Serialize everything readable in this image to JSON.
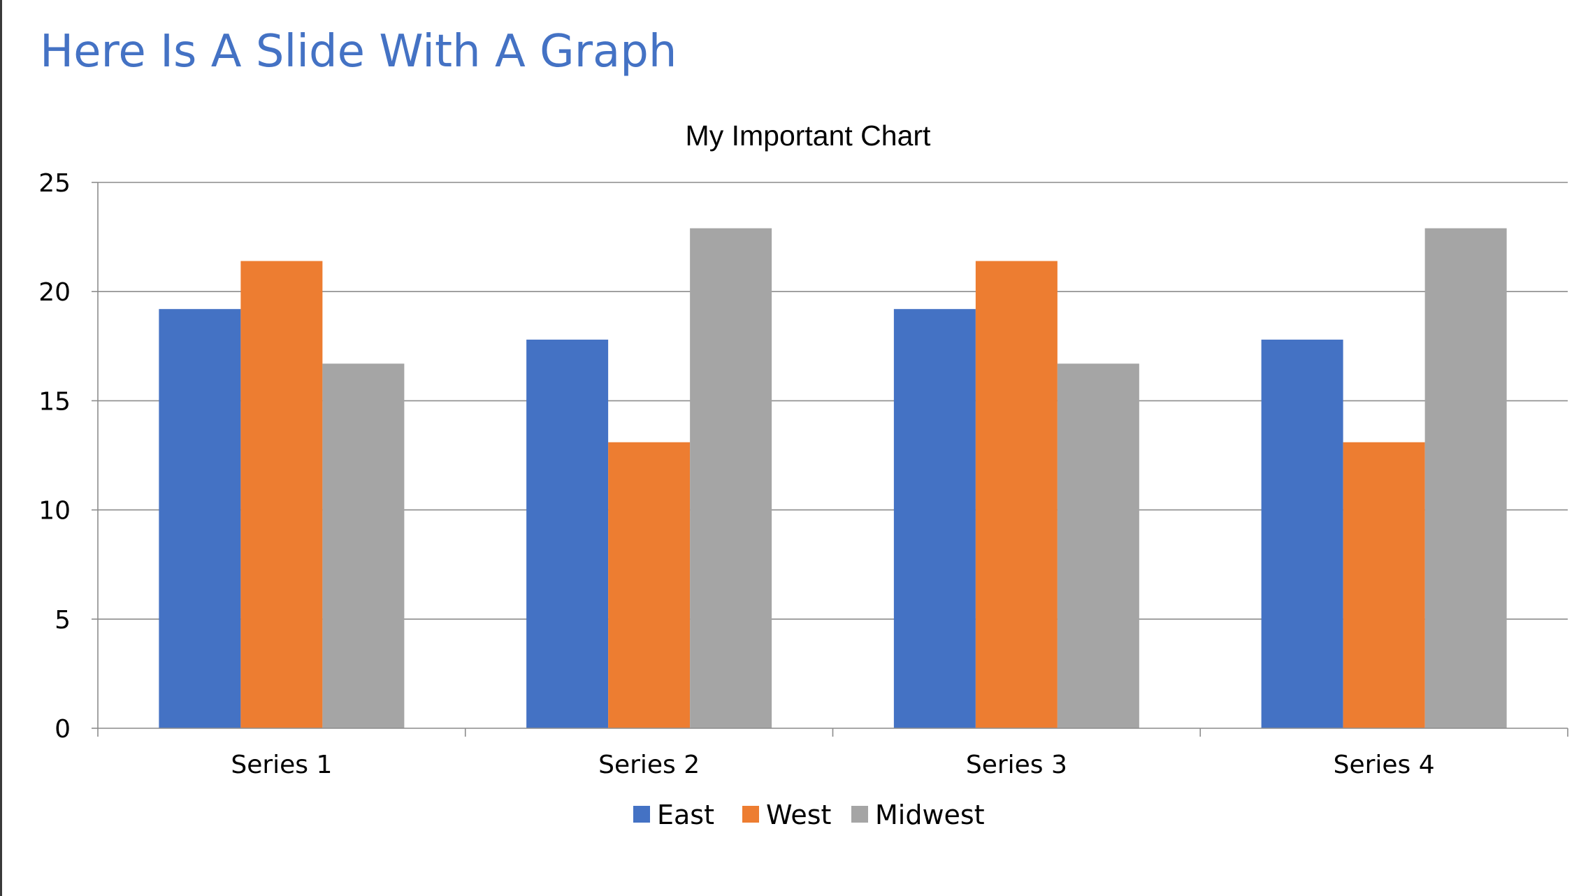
{
  "slide": {
    "title": "Here Is A Slide With A Graph"
  },
  "chart_data": {
    "type": "bar",
    "title": "My Important Chart",
    "categories": [
      "Series 1",
      "Series 2",
      "Series 3",
      "Series 4"
    ],
    "series": [
      {
        "name": "East",
        "color": "#4472c4",
        "values": [
          19.2,
          17.8,
          19.2,
          17.8
        ]
      },
      {
        "name": "West",
        "color": "#ed7d31",
        "values": [
          21.4,
          13.1,
          21.4,
          13.1
        ]
      },
      {
        "name": "Midwest",
        "color": "#a5a5a5",
        "values": [
          16.7,
          22.9,
          16.7,
          22.9
        ]
      }
    ],
    "ylim": [
      0,
      25
    ],
    "yticks": [
      0,
      5,
      10,
      15,
      20,
      25
    ],
    "xlabel": "",
    "ylabel": "",
    "grid": true,
    "legend": "bottom"
  }
}
